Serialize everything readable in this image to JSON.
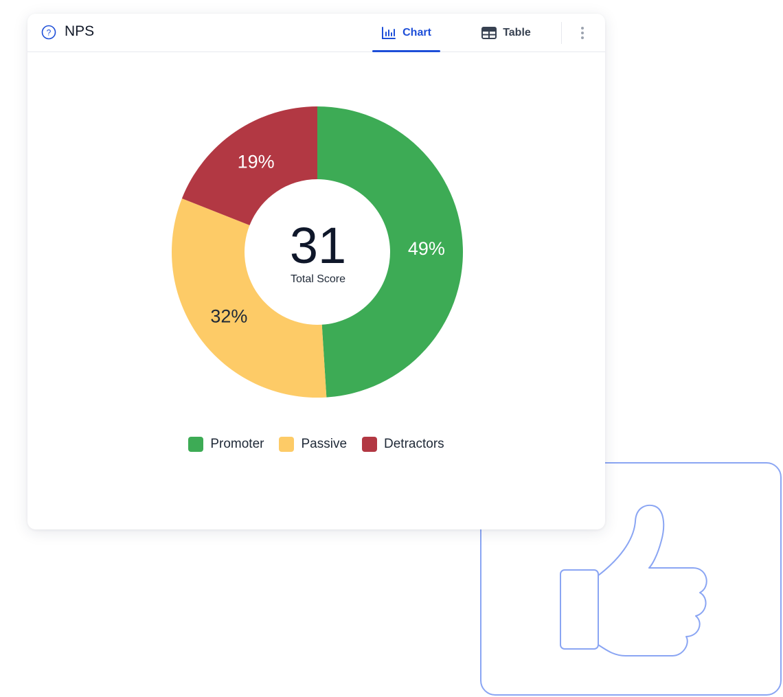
{
  "widget": {
    "title": "NPS",
    "icon": "help-circle-icon"
  },
  "tabs": [
    {
      "label": "Chart",
      "icon": "bar-chart-icon",
      "active": true
    },
    {
      "label": "Table",
      "icon": "table-icon",
      "active": false
    }
  ],
  "menu_icon": "more-vertical-icon",
  "decoration_icon": "thumbs-up-icon",
  "colors": {
    "accent": "#1d4ed8",
    "promoter": "#3dab55",
    "passive": "#fdcb67",
    "detractors": "#b23843",
    "decoration_stroke": "#8aa5f3"
  },
  "chart_data": {
    "type": "pie",
    "title": "",
    "center_value": "31",
    "center_label": "Total Score",
    "legend_position": "bottom",
    "categories": [
      "Promoter",
      "Passive",
      "Detractors"
    ],
    "values": [
      49,
      32,
      19
    ],
    "labels": [
      "49%",
      "32%",
      "19%"
    ]
  }
}
